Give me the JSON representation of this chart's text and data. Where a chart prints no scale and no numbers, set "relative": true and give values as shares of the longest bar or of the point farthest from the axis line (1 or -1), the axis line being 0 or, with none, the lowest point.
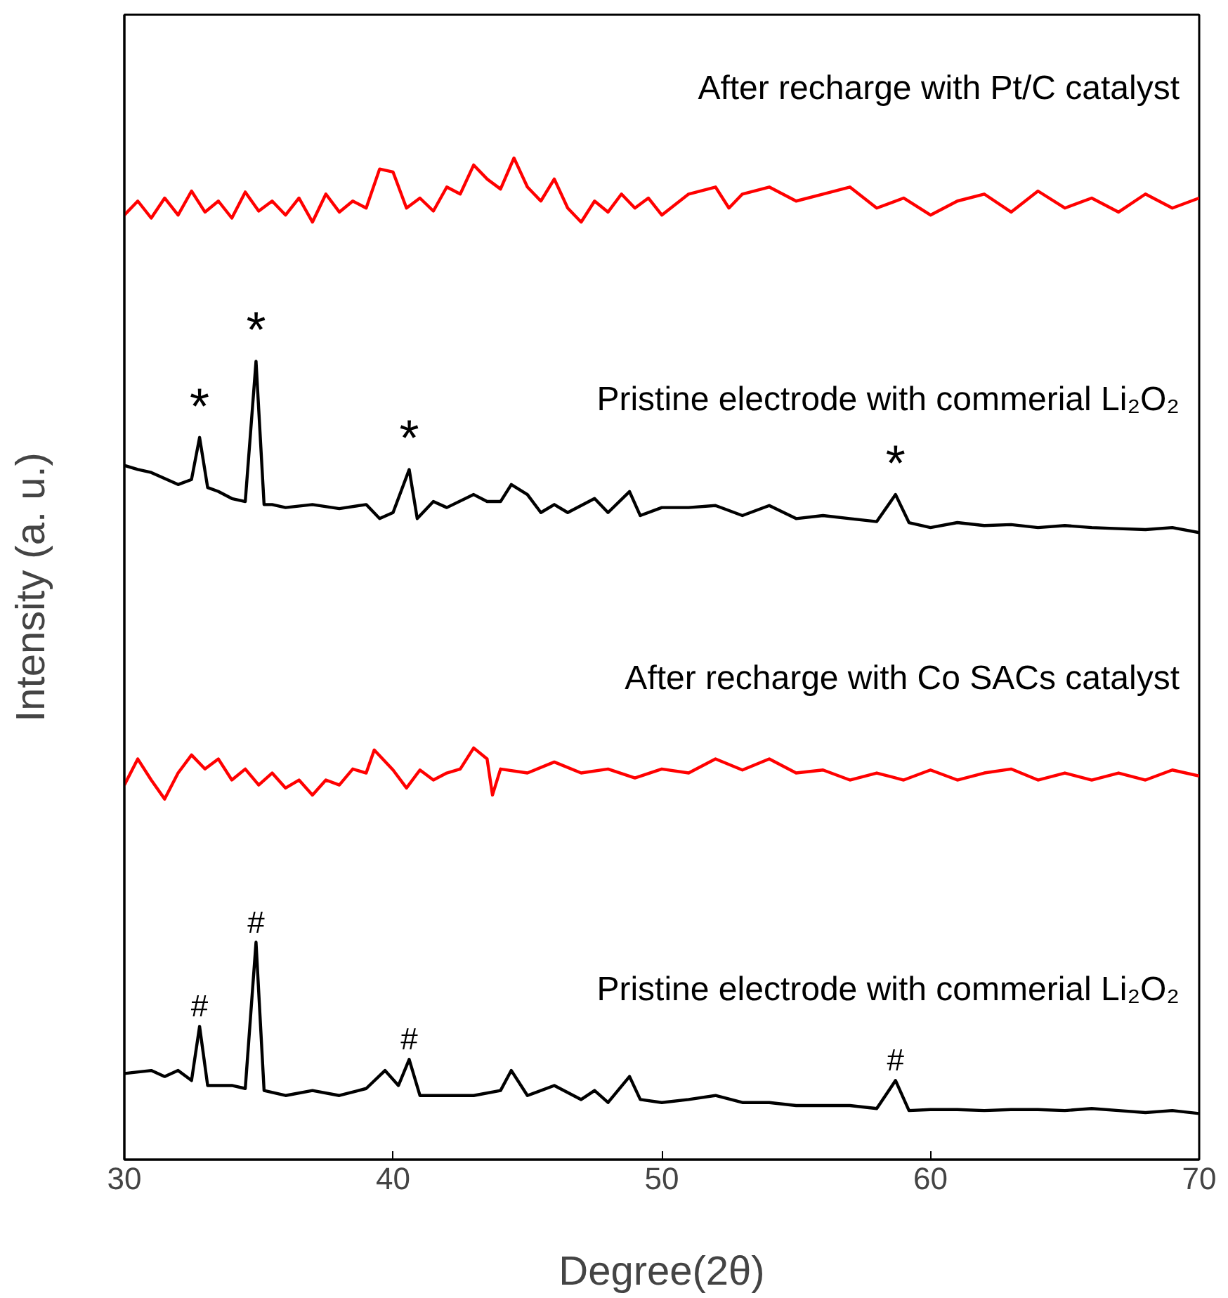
{
  "chart_data": {
    "type": "line",
    "relative": true,
    "xlabel": "Degree(2θ)",
    "ylabel": "Intensity (a. u.)",
    "xlim": [
      30,
      70
    ],
    "xticks": [
      30,
      40,
      50,
      60,
      70
    ],
    "grid": false,
    "legend": false,
    "marker": "none",
    "line_style": "solid",
    "series": [
      {
        "name": "After recharge with Pt/C catalyst",
        "color": "#ff0000",
        "x": [
          30,
          30.5,
          31,
          31.5,
          32,
          32.5,
          33,
          33.5,
          34,
          34.5,
          35,
          35.5,
          36,
          36.5,
          37,
          37.5,
          38,
          38.5,
          39,
          39.5,
          40,
          40.5,
          41,
          41.5,
          42,
          42.5,
          43,
          43.5,
          44,
          44.5,
          45,
          45.5,
          46,
          46.5,
          47,
          47.5,
          48,
          48.5,
          49,
          49.5,
          50,
          51,
          52,
          52.5,
          53,
          54,
          55,
          56,
          57,
          58,
          59,
          60,
          61,
          62,
          63,
          64,
          65,
          66,
          67,
          68,
          69,
          70
        ],
        "values": [
          0.943,
          0.957,
          0.94,
          0.96,
          0.943,
          0.967,
          0.946,
          0.957,
          0.94,
          0.966,
          0.947,
          0.957,
          0.943,
          0.96,
          0.936,
          0.964,
          0.946,
          0.957,
          0.95,
          0.989,
          0.986,
          0.95,
          0.96,
          0.947,
          0.971,
          0.964,
          0.993,
          0.979,
          0.969,
          1.0,
          0.971,
          0.957,
          0.979,
          0.95,
          0.936,
          0.957,
          0.946,
          0.964,
          0.95,
          0.96,
          0.943,
          0.964,
          0.971,
          0.95,
          0.964,
          0.971,
          0.957,
          0.964,
          0.971,
          0.95,
          0.96,
          0.943,
          0.957,
          0.964,
          0.946,
          0.967,
          0.95,
          0.96,
          0.946,
          0.964,
          0.95,
          0.96
        ]
      },
      {
        "name": "Pristine electrode with commerial Li₂O₂",
        "color": "#000000",
        "x": [
          30,
          30.5,
          31,
          31.5,
          32,
          32.5,
          32.8,
          33.1,
          33.5,
          34,
          34.5,
          34.9,
          35.2,
          35.5,
          36,
          37,
          38,
          39,
          39.5,
          40,
          40.6,
          40.9,
          41.5,
          42,
          43,
          43.5,
          44,
          44.4,
          45,
          45.5,
          46,
          46.5,
          47.5,
          48,
          48.8,
          49.2,
          50,
          51,
          52,
          53,
          54,
          55,
          56,
          57,
          58,
          58.7,
          59.2,
          60,
          61,
          62,
          63,
          64,
          65,
          66,
          67,
          68,
          69,
          70
        ],
        "values": [
          0.693,
          0.689,
          0.686,
          0.68,
          0.674,
          0.679,
          0.721,
          0.671,
          0.667,
          0.66,
          0.657,
          0.797,
          0.654,
          0.654,
          0.651,
          0.654,
          0.65,
          0.654,
          0.64,
          0.646,
          0.689,
          0.64,
          0.657,
          0.651,
          0.664,
          0.657,
          0.657,
          0.674,
          0.664,
          0.646,
          0.654,
          0.646,
          0.66,
          0.646,
          0.667,
          0.643,
          0.651,
          0.651,
          0.653,
          0.643,
          0.653,
          0.64,
          0.643,
          0.64,
          0.637,
          0.664,
          0.636,
          0.631,
          0.636,
          0.633,
          0.634,
          0.631,
          0.633,
          0.631,
          0.63,
          0.629,
          0.631,
          0.626
        ]
      },
      {
        "name": "After recharge with Co SACs catalyst",
        "color": "#ff0000",
        "x": [
          30,
          30.5,
          31,
          31.5,
          32,
          32.5,
          33,
          33.5,
          34,
          34.5,
          35,
          35.5,
          36,
          36.5,
          37,
          37.5,
          38,
          38.5,
          39,
          39.3,
          40,
          40.5,
          41,
          41.5,
          42,
          42.5,
          43,
          43.5,
          43.7,
          44,
          45,
          46,
          47,
          48,
          49,
          50,
          51,
          52,
          53,
          54,
          55,
          56,
          57,
          58,
          59,
          60,
          61,
          62,
          63,
          64,
          65,
          66,
          67,
          68,
          69,
          70
        ],
        "values": [
          0.374,
          0.4,
          0.379,
          0.36,
          0.386,
          0.404,
          0.39,
          0.4,
          0.379,
          0.39,
          0.374,
          0.386,
          0.371,
          0.379,
          0.364,
          0.379,
          0.374,
          0.39,
          0.386,
          0.409,
          0.389,
          0.371,
          0.389,
          0.379,
          0.386,
          0.39,
          0.411,
          0.4,
          0.364,
          0.39,
          0.386,
          0.397,
          0.386,
          0.39,
          0.381,
          0.39,
          0.386,
          0.4,
          0.389,
          0.4,
          0.386,
          0.389,
          0.379,
          0.386,
          0.379,
          0.389,
          0.379,
          0.386,
          0.39,
          0.379,
          0.386,
          0.379,
          0.386,
          0.379,
          0.389,
          0.383
        ]
      },
      {
        "name": "Pristine electrode with commerial Li₂O₂",
        "color": "#000000",
        "x": [
          30,
          31,
          31.5,
          32,
          32.5,
          32.8,
          33.1,
          34,
          34.5,
          34.9,
          35.2,
          36,
          37,
          38,
          39,
          39.7,
          40.2,
          40.6,
          41,
          42,
          43,
          44,
          44.4,
          45,
          46,
          47,
          47.5,
          48,
          48.8,
          49.2,
          50,
          51,
          52,
          53,
          54,
          55,
          56,
          57,
          58,
          58.7,
          59.2,
          60,
          61,
          62,
          63,
          64,
          65,
          66,
          67,
          68,
          69,
          70
        ],
        "values": [
          0.086,
          0.089,
          0.083,
          0.089,
          0.079,
          0.133,
          0.074,
          0.074,
          0.071,
          0.217,
          0.069,
          0.064,
          0.069,
          0.064,
          0.071,
          0.089,
          0.074,
          0.1,
          0.064,
          0.064,
          0.064,
          0.069,
          0.089,
          0.064,
          0.074,
          0.06,
          0.069,
          0.057,
          0.083,
          0.06,
          0.057,
          0.06,
          0.064,
          0.057,
          0.057,
          0.054,
          0.054,
          0.054,
          0.051,
          0.079,
          0.049,
          0.05,
          0.05,
          0.049,
          0.05,
          0.05,
          0.049,
          0.051,
          0.049,
          0.047,
          0.049,
          0.046
        ]
      }
    ],
    "annotations": [
      {
        "text": "*",
        "x": 32.8,
        "y": 0.721
      },
      {
        "text": "*",
        "x": 34.9,
        "y": 0.797
      },
      {
        "text": "*",
        "x": 40.6,
        "y": 0.689
      },
      {
        "text": "*",
        "x": 58.7,
        "y": 0.664
      },
      {
        "text": "#",
        "x": 32.8,
        "y": 0.133
      },
      {
        "text": "#",
        "x": 34.9,
        "y": 0.217
      },
      {
        "text": "#",
        "x": 40.6,
        "y": 0.1
      },
      {
        "text": "#",
        "x": 58.7,
        "y": 0.079
      }
    ]
  }
}
